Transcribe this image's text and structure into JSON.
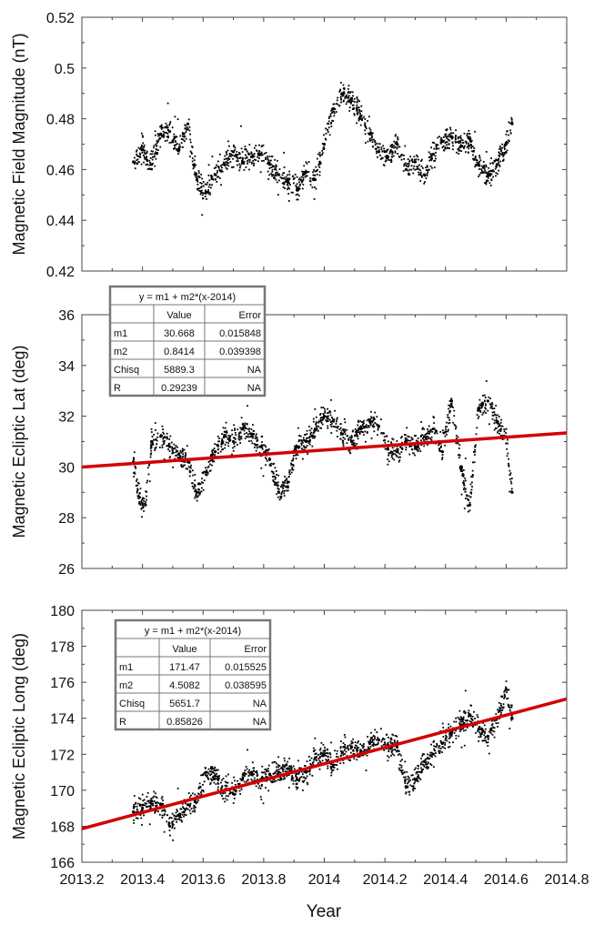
{
  "figure": {
    "xlabel": "Year",
    "fit_color": "#d40000",
    "point_color": "#000000",
    "x_ticks": [
      "2013.2",
      "2013.4",
      "2013.6",
      "2013.8",
      "2014",
      "2014.2",
      "2014.4",
      "2014.6",
      "2014.8"
    ]
  },
  "chart_data": [
    {
      "type": "scatter",
      "title": "",
      "ylabel": "Magnetic Field Magnitude (nT)",
      "xlabel": "",
      "xlim": [
        2013.2,
        2014.8
      ],
      "ylim": [
        0.42,
        0.52
      ],
      "y_ticks": [
        "0.42",
        "0.44",
        "0.46",
        "0.48",
        "0.5",
        "0.52"
      ],
      "grid": false,
      "series": [
        {
          "x": [
            2013.37,
            2013.4,
            2013.43,
            2013.46,
            2013.49,
            2013.52,
            2013.55,
            2013.58,
            2013.61,
            2013.64,
            2013.67,
            2013.7,
            2013.73,
            2013.76,
            2013.79,
            2013.82,
            2013.85,
            2013.88,
            2013.91,
            2013.94,
            2013.97,
            2014.0,
            2014.03,
            2014.06,
            2014.09,
            2014.12,
            2014.15,
            2014.18,
            2014.21,
            2014.24,
            2014.27,
            2014.3,
            2014.33,
            2014.36,
            2014.39,
            2014.42,
            2014.45,
            2014.48,
            2014.51,
            2014.54,
            2014.57,
            2014.6,
            2014.62
          ],
          "y": [
            0.463,
            0.468,
            0.462,
            0.474,
            0.475,
            0.468,
            0.478,
            0.456,
            0.451,
            0.458,
            0.462,
            0.467,
            0.463,
            0.465,
            0.466,
            0.462,
            0.458,
            0.455,
            0.452,
            0.459,
            0.456,
            0.47,
            0.484,
            0.49,
            0.488,
            0.481,
            0.474,
            0.467,
            0.465,
            0.47,
            0.46,
            0.463,
            0.458,
            0.466,
            0.471,
            0.473,
            0.469,
            0.472,
            0.462,
            0.458,
            0.462,
            0.47,
            0.478
          ]
        }
      ]
    },
    {
      "type": "scatter",
      "title": "",
      "ylabel": "Magnetic Ecliptic Lat (deg)",
      "xlabel": "",
      "xlim": [
        2013.2,
        2014.8
      ],
      "ylim": [
        26,
        36
      ],
      "y_ticks": [
        "26",
        "28",
        "30",
        "32",
        "34",
        "36"
      ],
      "grid": false,
      "fit": {
        "m1": 30.668,
        "m2": 0.8414,
        "origin": 2014
      },
      "fit_table": {
        "header": "y = m1 + m2*(x-2014)",
        "columns": [
          "",
          "Value",
          "Error"
        ],
        "rows": [
          [
            "m1",
            "30.668",
            "0.015848"
          ],
          [
            "m2",
            "0.8414",
            "0.039398"
          ],
          [
            "Chisq",
            "5889.3",
            "NA"
          ],
          [
            "R",
            "0.29239",
            "NA"
          ]
        ]
      },
      "series": [
        {
          "x": [
            2013.37,
            2013.39,
            2013.41,
            2013.43,
            2013.46,
            2013.49,
            2013.52,
            2013.55,
            2013.58,
            2013.61,
            2013.64,
            2013.67,
            2013.7,
            2013.73,
            2013.76,
            2013.79,
            2013.82,
            2013.85,
            2013.88,
            2013.91,
            2013.94,
            2013.97,
            2014.0,
            2014.03,
            2014.06,
            2014.09,
            2014.12,
            2014.15,
            2014.18,
            2014.21,
            2014.24,
            2014.27,
            2014.3,
            2014.33,
            2014.36,
            2014.39,
            2014.42,
            2014.45,
            2014.48,
            2014.51,
            2014.54,
            2014.57,
            2014.6,
            2014.62
          ],
          "y": [
            30.2,
            28.8,
            28.5,
            31.0,
            31.2,
            30.8,
            30.5,
            30.2,
            29.0,
            29.8,
            30.6,
            31.2,
            31.0,
            31.5,
            31.3,
            30.8,
            30.3,
            29.0,
            29.4,
            30.8,
            31.0,
            31.5,
            32.0,
            31.8,
            31.3,
            31.0,
            31.5,
            31.8,
            31.6,
            30.7,
            30.6,
            31.0,
            30.8,
            31.2,
            31.5,
            30.6,
            32.6,
            30.0,
            28.5,
            32.3,
            32.6,
            31.8,
            31.2,
            29.0
          ]
        }
      ]
    },
    {
      "type": "scatter",
      "title": "",
      "ylabel": "Magnetic Ecliptic Long (deg)",
      "xlabel": "Year",
      "xlim": [
        2013.2,
        2014.8
      ],
      "ylim": [
        166,
        180
      ],
      "y_ticks": [
        "166",
        "168",
        "170",
        "172",
        "174",
        "176",
        "178",
        "180"
      ],
      "grid": false,
      "fit": {
        "m1": 171.47,
        "m2": 4.5082,
        "origin": 2014
      },
      "fit_table": {
        "header": "y = m1 + m2*(x-2014)",
        "columns": [
          "",
          "Value",
          "Error"
        ],
        "rows": [
          [
            "m1",
            "171.47",
            "0.015525"
          ],
          [
            "m2",
            "4.5082",
            "0.038595"
          ],
          [
            "Chisq",
            "5651.7",
            "NA"
          ],
          [
            "R",
            "0.85826",
            "NA"
          ]
        ]
      },
      "series": [
        {
          "x": [
            2013.37,
            2013.4,
            2013.43,
            2013.46,
            2013.49,
            2013.52,
            2013.55,
            2013.58,
            2013.61,
            2013.64,
            2013.67,
            2013.7,
            2013.73,
            2013.76,
            2013.79,
            2013.82,
            2013.85,
            2013.88,
            2013.91,
            2013.94,
            2013.97,
            2014.0,
            2014.03,
            2014.06,
            2014.09,
            2014.12,
            2014.15,
            2014.18,
            2014.21,
            2014.24,
            2014.27,
            2014.3,
            2014.33,
            2014.36,
            2014.39,
            2014.42,
            2014.45,
            2014.48,
            2014.51,
            2014.54,
            2014.57,
            2014.6,
            2014.62
          ],
          "y": [
            168.8,
            169.0,
            169.4,
            169.2,
            168.0,
            168.6,
            169.2,
            169.6,
            171.0,
            170.8,
            170.0,
            169.8,
            170.6,
            171.0,
            170.6,
            170.9,
            171.0,
            171.2,
            170.6,
            171.0,
            171.8,
            172.0,
            171.4,
            172.1,
            172.4,
            172.1,
            172.6,
            172.8,
            172.5,
            172.4,
            170.2,
            170.6,
            171.6,
            172.0,
            172.6,
            173.2,
            173.6,
            174.2,
            173.4,
            173.0,
            174.0,
            175.6,
            174.0
          ]
        }
      ]
    }
  ]
}
